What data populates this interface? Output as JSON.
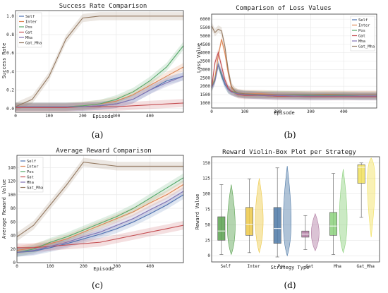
{
  "colors": {
    "Self": "#4C72B0",
    "Inter": "#DD8452",
    "Pos": "#55A868",
    "Gat": "#C44E52",
    "Mha": "#8172B3",
    "Gat_Mha": "#937860",
    "violin_Self": "#59A14F",
    "violin_Inter": "#EDC948",
    "violin_Pos": "#4E79A7",
    "violin_Gat": "#B07AA1",
    "violin_Mha": "#8CD17D",
    "violin_Gat_Mha": "#F1E05A"
  },
  "captions": [
    "(a)",
    "(b)",
    "(c)",
    "(d)"
  ],
  "chart_data": [
    {
      "type": "line",
      "title": "Success Rate Comparison",
      "xlabel": "Episode",
      "ylabel": "Success Rate",
      "xlim": [
        0,
        500
      ],
      "ylim": [
        -0.04,
        1.06
      ],
      "xticks": [
        "0",
        "100",
        "200",
        "300",
        "400"
      ],
      "yticks": [
        "0.0",
        "0.2",
        "0.4",
        "0.6",
        "0.8",
        "1.0"
      ],
      "legend": "top-left",
      "grid": true,
      "x": [
        0,
        50,
        100,
        150,
        200,
        250,
        300,
        350,
        400,
        450,
        500
      ],
      "series": [
        {
          "name": "Self",
          "values": [
            0.02,
            0.02,
            0.02,
            0.02,
            0.02,
            0.03,
            0.05,
            0.1,
            0.2,
            0.3,
            0.35
          ]
        },
        {
          "name": "Inter",
          "values": [
            0.02,
            0.02,
            0.02,
            0.02,
            0.03,
            0.05,
            0.08,
            0.15,
            0.25,
            0.35,
            0.45
          ]
        },
        {
          "name": "Pos",
          "values": [
            0.02,
            0.02,
            0.02,
            0.02,
            0.03,
            0.05,
            0.1,
            0.18,
            0.3,
            0.45,
            0.68
          ]
        },
        {
          "name": "Gat",
          "values": [
            0.01,
            0.01,
            0.01,
            0.01,
            0.02,
            0.02,
            0.02,
            0.03,
            0.04,
            0.05,
            0.06
          ]
        },
        {
          "name": "Mha",
          "values": [
            0.02,
            0.02,
            0.02,
            0.02,
            0.02,
            0.03,
            0.05,
            0.1,
            0.2,
            0.28,
            0.35
          ]
        },
        {
          "name": "Gat_Mha",
          "values": [
            0.02,
            0.1,
            0.35,
            0.75,
            0.98,
            1.0,
            1.0,
            1.0,
            1.0,
            1.0,
            1.0
          ]
        }
      ]
    },
    {
      "type": "line",
      "title": "Comparison of Loss Values",
      "xlabel": "Episode",
      "ylabel": "Loss Value",
      "xlim": [
        0,
        500
      ],
      "ylim": [
        700,
        6300
      ],
      "xticks": [
        "0",
        "100",
        "200",
        "300",
        "400"
      ],
      "yticks": [
        "1000",
        "1500",
        "2000",
        "2500",
        "3000",
        "3500",
        "4000",
        "4500",
        "5000",
        "5500",
        "6000"
      ],
      "legend": "top-right",
      "grid": true,
      "x": [
        0,
        10,
        20,
        30,
        40,
        50,
        60,
        70,
        80,
        100,
        150,
        200,
        250,
        300,
        350,
        400,
        450,
        500
      ],
      "series": [
        {
          "name": "Self",
          "values": [
            1900,
            2400,
            3300,
            2600,
            2100,
            1800,
            1700,
            1600,
            1550,
            1500,
            1450,
            1400,
            1400,
            1380,
            1380,
            1400,
            1380,
            1380
          ]
        },
        {
          "name": "Inter",
          "values": [
            1900,
            2500,
            3800,
            4800,
            4000,
            2800,
            1900,
            1700,
            1600,
            1550,
            1550,
            1500,
            1500,
            1500,
            1520,
            1500,
            1500,
            1500
          ]
        },
        {
          "name": "Pos",
          "values": [
            1900,
            2400,
            3300,
            2700,
            2200,
            1800,
            1700,
            1650,
            1550,
            1500,
            1500,
            1500,
            1480,
            1450,
            1450,
            1450,
            1420,
            1420
          ]
        },
        {
          "name": "Gat",
          "values": [
            1900,
            3400,
            4000,
            3200,
            2400,
            1900,
            1700,
            1600,
            1500,
            1450,
            1450,
            1400,
            1400,
            1380,
            1380,
            1380,
            1380,
            1380
          ]
        },
        {
          "name": "Mha",
          "values": [
            1900,
            2300,
            3300,
            2800,
            2200,
            1800,
            1650,
            1600,
            1550,
            1500,
            1450,
            1450,
            1420,
            1420,
            1420,
            1420,
            1420,
            1420
          ]
        },
        {
          "name": "Gat_Mha",
          "values": [
            5600,
            5200,
            5400,
            5300,
            4400,
            3000,
            2000,
            1700,
            1600,
            1550,
            1500,
            1500,
            1500,
            1500,
            1500,
            1500,
            1500,
            1500
          ]
        }
      ]
    },
    {
      "type": "line",
      "title": "Average Reward Comparison",
      "xlabel": "Episode",
      "ylabel": "Average Reward Value",
      "xlim": [
        0,
        500
      ],
      "ylim": [
        0,
        158
      ],
      "xticks": [
        "0",
        "100",
        "200",
        "300",
        "400"
      ],
      "yticks": [
        "0",
        "20",
        "40",
        "60",
        "80",
        "100",
        "120",
        "140"
      ],
      "legend": "top-left",
      "grid": true,
      "x": [
        0,
        50,
        100,
        150,
        200,
        250,
        300,
        350,
        400,
        450,
        500
      ],
      "series": [
        {
          "name": "Self",
          "values": [
            15,
            17,
            22,
            28,
            35,
            42,
            50,
            60,
            72,
            85,
            100
          ]
        },
        {
          "name": "Inter",
          "values": [
            18,
            22,
            28,
            35,
            45,
            55,
            65,
            75,
            88,
            100,
            115
          ]
        },
        {
          "name": "Pos",
          "values": [
            15,
            20,
            30,
            38,
            48,
            58,
            68,
            80,
            95,
            110,
            125
          ]
        },
        {
          "name": "Gat",
          "values": [
            22,
            22,
            24,
            26,
            28,
            30,
            35,
            40,
            45,
            50,
            55
          ]
        },
        {
          "name": "Mha",
          "values": [
            15,
            18,
            24,
            30,
            38,
            45,
            55,
            65,
            78,
            90,
            105
          ]
        },
        {
          "name": "Gat_Mha",
          "values": [
            38,
            55,
            85,
            115,
            148,
            145,
            142,
            142,
            142,
            142,
            142
          ]
        }
      ]
    },
    {
      "type": "box",
      "title": "Reward Violin-Box Plot per Strategy",
      "xlabel": "Strategy Type",
      "ylabel": "Reward Value",
      "ylim": [
        -10,
        160
      ],
      "yticks": [
        "0",
        "25",
        "50",
        "75",
        "100",
        "125",
        "150"
      ],
      "grid": true,
      "categories": [
        "Self",
        "Inter",
        "Pos",
        "Gat",
        "Mha",
        "Gat_Mha"
      ],
      "box": [
        {
          "min": 2,
          "q1": 25,
          "median": 40,
          "q3": 63,
          "max": 115
        },
        {
          "min": 5,
          "q1": 33,
          "median": 51,
          "q3": 78,
          "max": 124
        },
        {
          "min": -2,
          "q1": 20,
          "median": 44,
          "q3": 78,
          "max": 142
        },
        {
          "min": 10,
          "q1": 30,
          "median": 35,
          "q3": 40,
          "max": 65
        },
        {
          "min": 2,
          "q1": 33,
          "median": 48,
          "q3": 70,
          "max": 133
        },
        {
          "min": 62,
          "q1": 117,
          "median": 143,
          "q3": 147,
          "max": 150
        }
      ],
      "violin": [
        {
          "min": 2,
          "max": 115,
          "median": 38
        },
        {
          "min": 5,
          "max": 125,
          "median": 50
        },
        {
          "min": 0,
          "max": 145,
          "median": 40
        },
        {
          "min": 8,
          "max": 68,
          "median": 35
        },
        {
          "min": 5,
          "max": 140,
          "median": 45
        },
        {
          "min": 30,
          "max": 158,
          "median": 142
        }
      ]
    }
  ]
}
